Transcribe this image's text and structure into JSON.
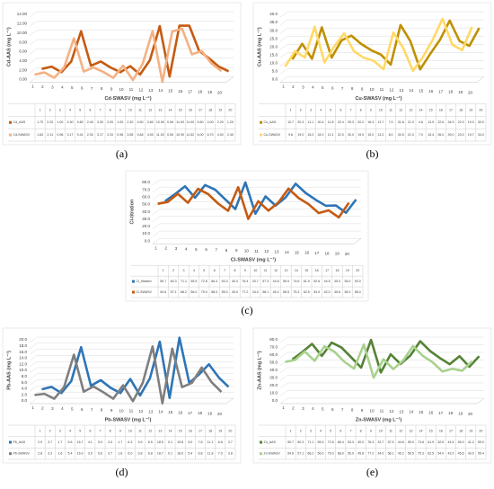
{
  "chart_data": [
    {
      "type": "line",
      "label": "(a)",
      "ylabel": "Cd-AAS (mg L⁻¹)",
      "xlabel": "Cd-SWASV (mg L⁻¹)",
      "categories": [
        "1",
        "2",
        "3",
        "4",
        "5",
        "6",
        "7",
        "8",
        "9",
        "10",
        "11",
        "12",
        "13",
        "14",
        "15",
        "16",
        "17",
        "18",
        "19",
        "20"
      ],
      "ylim": [
        0,
        14
      ],
      "yticks": [
        {
          "value": 0,
          "label": "0.00"
        },
        {
          "value": 2,
          "label": "2.00"
        },
        {
          "value": 4,
          "label": "4.00"
        },
        {
          "value": 6,
          "label": "6.00"
        },
        {
          "value": 8,
          "label": "8.00"
        },
        {
          "value": 10,
          "label": "10.00"
        },
        {
          "value": 12,
          "label": "12.00"
        },
        {
          "value": 14,
          "label": "14.00"
        }
      ],
      "grid": true,
      "series": [
        {
          "name": "Cd_AAS",
          "color": "#c55a11",
          "values": [
            1.7,
            2.2,
            1.0,
            3.3,
            9.8,
            2.4,
            3.3,
            2.0,
            1.0,
            2.3,
            0.5,
            3.6,
            10.9,
            0.06,
            11.0,
            11.0,
            5.6,
            4.0,
            2.2,
            1.2
          ],
          "value_labels": [
            "1.70",
            "2.20",
            "1.00",
            "3.30",
            "9.80",
            "2.40",
            "3.30",
            "2.00",
            "1.00",
            "2.30",
            "0.50",
            "3.60",
            "10.90",
            "0.06",
            "11.00",
            "11.00",
            "5.60",
            "4.00",
            "2.20",
            "1.20"
          ]
        },
        {
          "name": "Cd-SWASV",
          "color": "#f4b183",
          "values": [
            1.63,
            2.11,
            0.96,
            3.17,
            9.41,
            2.3,
            3.17,
            2.2,
            0.96,
            3.55,
            0.48,
            4.0,
            11.0,
            0.06,
            10.9,
            11.52,
            6.0,
            6.7,
            4.0,
            2.4
          ],
          "value_labels": [
            "1.63",
            "2.11",
            "0.96",
            "3.17",
            "9.41",
            "2.30",
            "3.17",
            "2.20",
            "0.96",
            "3.55",
            "0.48",
            "4.00",
            "11.00",
            "0.06",
            "10.90",
            "11.52",
            "6.00",
            "6.70",
            "4.00",
            "2.40"
          ]
        }
      ]
    },
    {
      "type": "line",
      "label": "(b)",
      "ylabel": "Cu-AAS (mg L⁻¹)",
      "xlabel": "Cu-SWASV (mg L⁻¹)",
      "categories": [
        "1",
        "2",
        "3",
        "4",
        "5",
        "6",
        "7",
        "8",
        "9",
        "10",
        "11",
        "12",
        "13",
        "14",
        "15",
        "16",
        "17",
        "18",
        "19",
        "20"
      ],
      "ylim": [
        0,
        40
      ],
      "yticks": [
        {
          "value": 0,
          "label": "0.0"
        },
        {
          "value": 5,
          "label": "5.0"
        },
        {
          "value": 10,
          "label": "10.0"
        },
        {
          "value": 15,
          "label": "15.0"
        },
        {
          "value": 20,
          "label": "20.0"
        },
        {
          "value": 25,
          "label": "25.0"
        },
        {
          "value": 30,
          "label": "30.0"
        },
        {
          "value": 35,
          "label": "35.0"
        },
        {
          "value": 40,
          "label": "40.0"
        }
      ],
      "grid": true,
      "series": [
        {
          "name": "Cu_AAS",
          "color": "#bf9000",
          "values": [
            10.7,
            20.3,
            11.1,
            30.4,
            11.8,
            22.4,
            25.3,
            20.2,
            16.4,
            13.7,
            7.5,
            31.8,
            21.9,
            4.6,
            13.9,
            22.6,
            34.5,
            22.0,
            19.0,
            30.0
          ],
          "value_labels": [
            "10.7",
            "20.3",
            "11.1",
            "30.4",
            "11.8",
            "22.4",
            "25.3",
            "20.2",
            "16.4",
            "13.7",
            "7.5",
            "31.8",
            "21.9",
            "4.6",
            "13.9",
            "22.6",
            "34.5",
            "22.0",
            "19.0",
            "30.0"
          ]
        },
        {
          "name": "Cu-SWASV",
          "color": "#ffd966",
          "values": [
            9.6,
            19.0,
            15.2,
            34.0,
            12.1,
            22.0,
            30.0,
            19.0,
            15.0,
            13.2,
            8.0,
            30.5,
            21.0,
            7.0,
            15.4,
            26.0,
            39.0,
            23.0,
            19.7,
            34.0
          ],
          "value_labels": [
            "9.6",
            "19.0",
            "15.2",
            "34.0",
            "12.1",
            "22.0",
            "30.0",
            "19.0",
            "15.0",
            "13.2",
            "8.0",
            "30.5",
            "21.0",
            "7.0",
            "15.4",
            "26.0",
            "39.0",
            "23.0",
            "19.7",
            "34.0"
          ]
        }
      ]
    },
    {
      "type": "line",
      "label": "(c)",
      "ylabel": "Cl-titration",
      "xlabel": "Cl-SWASV (mg L⁻¹)",
      "categories": [
        "1",
        "2",
        "3",
        "4",
        "5",
        "6",
        "7",
        "8",
        "9",
        "10",
        "11",
        "12",
        "13",
        "14",
        "15",
        "16",
        "17",
        "18",
        "19",
        "20"
      ],
      "ylim": [
        0,
        80
      ],
      "yticks": [
        {
          "value": 0,
          "label": "0.0"
        },
        {
          "value": 10,
          "label": "10.0"
        },
        {
          "value": 20,
          "label": "20.0"
        },
        {
          "value": 30,
          "label": "30.0"
        },
        {
          "value": 40,
          "label": "40.0"
        },
        {
          "value": 50,
          "label": "50.0"
        },
        {
          "value": 60,
          "label": "60.0"
        },
        {
          "value": 70,
          "label": "70.0"
        },
        {
          "value": 80,
          "label": "80.0"
        }
      ],
      "grid": true,
      "series": [
        {
          "name": "Cl_titration",
          "color": "#2e75b6",
          "values": [
            50.7,
            60.3,
            71.1,
            55.5,
            72.8,
            66.4,
            53.3,
            40.0,
            76.4,
            33.7,
            57.3,
            44.8,
            55.9,
            74.6,
            61.9,
            52.6,
            44.5,
            45.0,
            35.0,
            53.0
          ],
          "value_labels": [
            "50.7",
            "60.3",
            "71.1",
            "55.5",
            "72.8",
            "66.4",
            "53.3",
            "40.0",
            "76.4",
            "33.7",
            "57.3",
            "44.8",
            "55.9",
            "74.6",
            "61.9",
            "52.6",
            "44.5",
            "45.0",
            "35.0",
            "53.0"
          ]
        },
        {
          "name": "Cl-SWASV",
          "color": "#c55a11",
          "values": [
            54.6,
            57.1,
            68.2,
            56.0,
            75.0,
            68.0,
            55.0,
            45.0,
            77.2,
            34.0,
            58.1,
            45.2,
            56.5,
            75.3,
            62.5,
            54.0,
            42.0,
            45.6,
            36.0,
            56.0
          ],
          "value_labels": [
            "54.6",
            "57.1",
            "68.2",
            "56.0",
            "75.0",
            "68.0",
            "55.0",
            "45.0",
            "77.2",
            "34.0",
            "58.1",
            "45.2",
            "56.5",
            "75.3",
            "62.5",
            "54.0",
            "42.0",
            "45.6",
            "36.0",
            "56.0"
          ]
        }
      ]
    },
    {
      "type": "line",
      "label": "(d)",
      "ylabel": "Pb-AAS (mg L⁻¹)",
      "xlabel": "Pb-SWASV (mg L⁻¹)",
      "categories": [
        "1",
        "2",
        "3",
        "4",
        "5",
        "6",
        "7",
        "8",
        "9",
        "10",
        "11",
        "12",
        "13",
        "14",
        "15",
        "16",
        "17",
        "18",
        "19",
        "20"
      ],
      "ylim": [
        0,
        20
      ],
      "yticks": [
        {
          "value": 0,
          "label": "0.0"
        },
        {
          "value": 2,
          "label": "2.0"
        },
        {
          "value": 4,
          "label": "4.0"
        },
        {
          "value": 6,
          "label": "6.0"
        },
        {
          "value": 8,
          "label": "8.0"
        },
        {
          "value": 10,
          "label": "10.0"
        },
        {
          "value": 12,
          "label": "12.0"
        },
        {
          "value": 14,
          "label": "14.0"
        },
        {
          "value": 16,
          "label": "16.0"
        },
        {
          "value": 18,
          "label": "18.0"
        },
        {
          "value": 20,
          "label": "20.0"
        }
      ],
      "grid": true,
      "series": [
        {
          "name": "Pb_AAS",
          "color": "#2e75b6",
          "values": [
            2.9,
            3.7,
            1.7,
            5.6,
            16.7,
            4.1,
            5.9,
            3.4,
            1.7,
            6.3,
            0.9,
            6.5,
            18.5,
            0.1,
            19.8,
            5.0,
            7.8,
            11.1,
            6.8,
            3.7
          ],
          "value_labels": [
            "2.9",
            "3.7",
            "1.7",
            "5.6",
            "16.7",
            "4.1",
            "5.9",
            "3.4",
            "1.7",
            "6.3",
            "0.9",
            "6.5",
            "18.5",
            "0.1",
            "19.8",
            "5.0",
            "7.8",
            "11.1",
            "6.8",
            "3.7"
          ]
        },
        {
          "name": "Pb-SWASV",
          "color": "#7f7f7f",
          "values": [
            2.8,
            3.2,
            1.6,
            5.4,
            16.0,
            3.9,
            5.6,
            3.7,
            1.6,
            6.0,
            0.8,
            6.8,
            18.7,
            0.1,
            18.0,
            5.4,
            6.8,
            11.8,
            7.0,
            3.8
          ],
          "value_labels": [
            "2.8",
            "3.2",
            "1.6",
            "5.4",
            "16.0",
            "3.9",
            "5.6",
            "3.7",
            "1.6",
            "6.0",
            "0.8",
            "6.8",
            "18.7",
            "0.1",
            "18.0",
            "5.4",
            "6.8",
            "11.8",
            "7.0",
            "3.8"
          ]
        }
      ]
    },
    {
      "type": "line",
      "label": "(e)",
      "ylabel": "Zn-AAS (mg L⁻¹)",
      "xlabel": "Zn-SWASV (mg L⁻¹)",
      "categories": [
        "1",
        "2",
        "3",
        "4",
        "5",
        "6",
        "7",
        "8",
        "9",
        "10",
        "11",
        "12",
        "13",
        "14",
        "15",
        "16",
        "17",
        "18",
        "19",
        "20"
      ],
      "ylim": [
        0,
        80
      ],
      "yticks": [
        {
          "value": 0,
          "label": "0.0"
        },
        {
          "value": 10,
          "label": "10.0"
        },
        {
          "value": 20,
          "label": "20.0"
        },
        {
          "value": 30,
          "label": "30.0"
        },
        {
          "value": 40,
          "label": "40.0"
        },
        {
          "value": 50,
          "label": "50.0"
        },
        {
          "value": 60,
          "label": "60.0"
        },
        {
          "value": 70,
          "label": "70.0"
        },
        {
          "value": 80,
          "label": "80.0"
        }
      ],
      "grid": true,
      "series": [
        {
          "name": "Zn_AAS",
          "color": "#548235",
          "values": [
            50.7,
            60.3,
            71.1,
            55.4,
            72.8,
            66.4,
            53.3,
            40.0,
            76.4,
            33.7,
            57.5,
            44.8,
            55.9,
            74.6,
            61.9,
            52.6,
            44.5,
            55.0,
            41.2,
            55.0
          ],
          "value_labels": [
            "50.7",
            "60.3",
            "71.1",
            "55.4",
            "72.8",
            "66.4",
            "53.3",
            "40.0",
            "76.4",
            "33.7",
            "57.5",
            "44.8",
            "55.9",
            "74.6",
            "61.9",
            "52.6",
            "44.5",
            "55.0",
            "41.2",
            "55.0"
          ]
        },
        {
          "name": "Zn-SWASV",
          "color": "#a9d18e",
          "values": [
            54.6,
            57.1,
            68.2,
            56.0,
            75.0,
            68.0,
            55.0,
            45.8,
            77.2,
            34.0,
            58.1,
            45.2,
            56.5,
            75.3,
            62.5,
            54.0,
            42.0,
            45.6,
            43.0,
            55.4
          ],
          "value_labels": [
            "54.6",
            "57.1",
            "68.2",
            "56.0",
            "75.0",
            "68.0",
            "55.0",
            "45.8",
            "77.2",
            "34.0",
            "58.1",
            "45.2",
            "56.5",
            "75.3",
            "62.5",
            "54.0",
            "42.0",
            "45.6",
            "43.0",
            "55.4"
          ]
        }
      ]
    }
  ]
}
